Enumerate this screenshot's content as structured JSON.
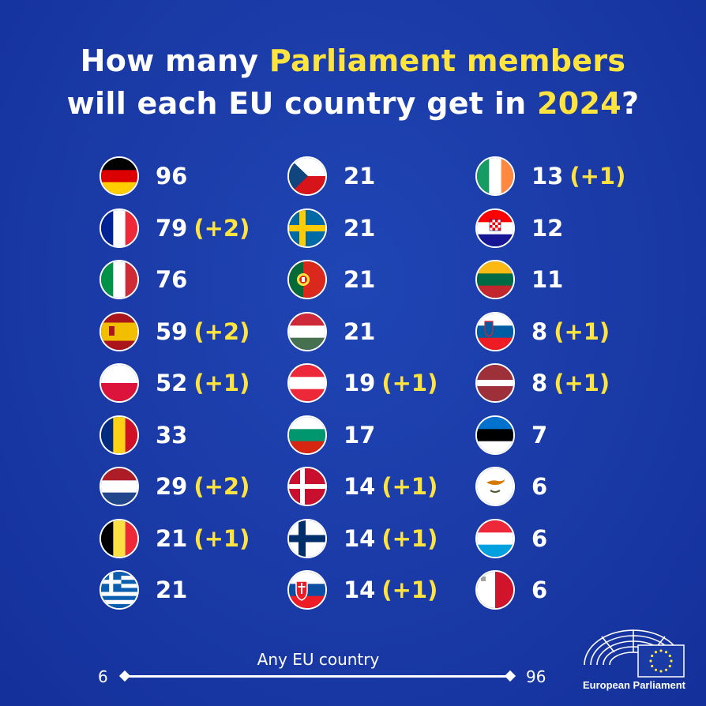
{
  "title": {
    "line1_a": "How many ",
    "line1_b": "Parliament members",
    "line2_a": "will each EU country get in ",
    "line2_b": "2024",
    "line2_c": "?"
  },
  "columns": [
    [
      {
        "flag": "germany-flag",
        "seats": "96",
        "change": ""
      },
      {
        "flag": "france-flag",
        "seats": "79",
        "change": "(+2)"
      },
      {
        "flag": "italy-flag",
        "seats": "76",
        "change": ""
      },
      {
        "flag": "spain-flag",
        "seats": "59",
        "change": "(+2)"
      },
      {
        "flag": "poland-flag",
        "seats": "52",
        "change": "(+1)"
      },
      {
        "flag": "romania-flag",
        "seats": "33",
        "change": ""
      },
      {
        "flag": "netherlands-flag",
        "seats": "29",
        "change": "(+2)"
      },
      {
        "flag": "belgium-flag",
        "seats": "21",
        "change": "(+1)"
      },
      {
        "flag": "greece-flag",
        "seats": "21",
        "change": ""
      }
    ],
    [
      {
        "flag": "czechia-flag",
        "seats": "21",
        "change": ""
      },
      {
        "flag": "sweden-flag",
        "seats": "21",
        "change": ""
      },
      {
        "flag": "portugal-flag",
        "seats": "21",
        "change": ""
      },
      {
        "flag": "hungary-flag",
        "seats": "21",
        "change": ""
      },
      {
        "flag": "austria-flag",
        "seats": "19",
        "change": "(+1)"
      },
      {
        "flag": "bulgaria-flag",
        "seats": "17",
        "change": ""
      },
      {
        "flag": "denmark-flag",
        "seats": "14",
        "change": "(+1)"
      },
      {
        "flag": "finland-flag",
        "seats": "14",
        "change": "(+1)"
      },
      {
        "flag": "slovakia-flag",
        "seats": "14",
        "change": "(+1)"
      }
    ],
    [
      {
        "flag": "ireland-flag",
        "seats": "13",
        "change": "(+1)"
      },
      {
        "flag": "croatia-flag",
        "seats": "12",
        "change": ""
      },
      {
        "flag": "lithuania-flag",
        "seats": "11",
        "change": ""
      },
      {
        "flag": "slovenia-flag",
        "seats": "8",
        "change": "(+1)"
      },
      {
        "flag": "latvia-flag",
        "seats": "8",
        "change": "(+1)"
      },
      {
        "flag": "estonia-flag",
        "seats": "7",
        "change": ""
      },
      {
        "flag": "cyprus-flag",
        "seats": "6",
        "change": ""
      },
      {
        "flag": "luxembourg-flag",
        "seats": "6",
        "change": ""
      },
      {
        "flag": "malta-flag",
        "seats": "6",
        "change": ""
      }
    ]
  ],
  "legend": {
    "caption": "Any EU country",
    "min": "6",
    "max": "96"
  },
  "branding": {
    "name": "European Parliament"
  },
  "colors": {
    "background": "#1a3aa6",
    "highlight": "#ffe33f"
  }
}
